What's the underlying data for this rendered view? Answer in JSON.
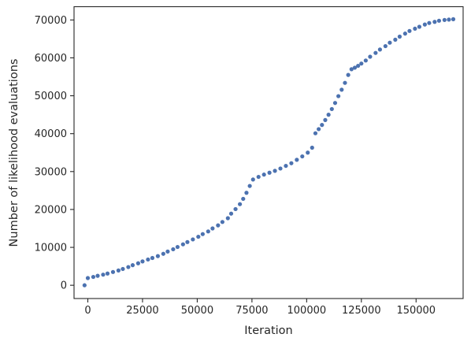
{
  "chart_data": {
    "type": "scatter",
    "xlabel": "Iteration",
    "ylabel": "Number of likelihood evaluations",
    "xlim": [
      -6300,
      171500
    ],
    "ylim": [
      -3500,
      73500
    ],
    "xticks": [
      0,
      25000,
      50000,
      75000,
      100000,
      125000,
      150000
    ],
    "yticks": [
      0,
      10000,
      20000,
      30000,
      40000,
      50000,
      60000,
      70000
    ],
    "grid": false,
    "marker_color": "#4c72b0",
    "series": [
      {
        "x": [
          -1500,
          0,
          2500,
          4500,
          7000,
          9000,
          11500,
          14000,
          16000,
          18500,
          20500,
          23000,
          25000,
          27500,
          29500,
          32000,
          34500,
          36500,
          39000,
          41000,
          43500,
          45500,
          48000,
          50500,
          52500,
          55000,
          57000,
          59500,
          61500,
          64000,
          65500,
          67500,
          69500,
          71000,
          72500,
          74000,
          75500,
          78000,
          80500,
          83000,
          85500,
          88000,
          90500,
          93000,
          95500,
          98000,
          100500,
          102500,
          104000,
          105500,
          107000,
          108500,
          110000,
          111500,
          113000,
          114500,
          116000,
          117500,
          119000,
          120500,
          122000,
          123500,
          125000,
          127000,
          129000,
          131500,
          133500,
          136000,
          138000,
          140500,
          142500,
          145000,
          147000,
          149500,
          151500,
          154000,
          156000,
          158500,
          160500,
          163000,
          165000,
          167000
        ],
        "y": [
          0,
          1900,
          2200,
          2500,
          2800,
          3100,
          3500,
          3900,
          4300,
          4800,
          5300,
          5800,
          6300,
          6800,
          7200,
          7700,
          8300,
          8900,
          9500,
          10100,
          10800,
          11400,
          12100,
          12800,
          13500,
          14200,
          15000,
          15800,
          16700,
          17700,
          18900,
          20100,
          21400,
          22800,
          24400,
          26200,
          27900,
          28600,
          29200,
          29700,
          30200,
          30800,
          31500,
          32200,
          33100,
          34000,
          35000,
          36300,
          40100,
          41200,
          42300,
          43600,
          45000,
          46500,
          48100,
          49900,
          51600,
          53400,
          55500,
          57000,
          57400,
          57900,
          58500,
          59300,
          60300,
          61300,
          62200,
          63100,
          64000,
          64800,
          65600,
          66400,
          67100,
          67700,
          68200,
          68800,
          69200,
          69500,
          69800,
          70000,
          70100,
          70200
        ]
      }
    ]
  }
}
